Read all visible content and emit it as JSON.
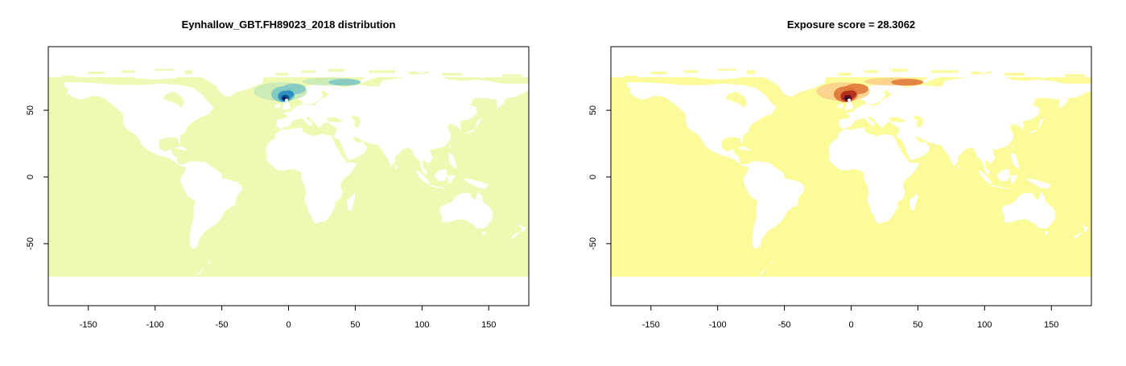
{
  "panels": [
    {
      "title": "Eynhallow_GBT.FH89023_2018 distribution",
      "ocean_color": "#eef9b4",
      "hotspot_colors": [
        "#c9e9b5",
        "#7fc9c4",
        "#2f8fbf",
        "#0b4f8a",
        "#081d58"
      ]
    },
    {
      "title": "Exposure score = 28.3062",
      "ocean_color": "#fbfb9a",
      "hotspot_colors": [
        "#f9d08a",
        "#e07a3c",
        "#b5301c",
        "#6b0f22",
        "#2a0a22"
      ]
    }
  ],
  "axes": {
    "x_ticks": [
      "-150",
      "-100",
      "-50",
      "0",
      "50",
      "100",
      "150"
    ],
    "y_ticks": [
      "-50",
      "0",
      "50"
    ],
    "x_range": [
      -180,
      180
    ],
    "y_range": [
      -95,
      97
    ]
  },
  "chart_data": [
    {
      "type": "heatmap",
      "title": "Eynhallow_GBT.FH89023_2018 distribution",
      "xlabel": "",
      "ylabel": "",
      "xlim": [
        -180,
        180
      ],
      "ylim": [
        -95,
        97
      ],
      "x_ticks": [
        -150,
        -100,
        -50,
        0,
        50,
        100,
        150
      ],
      "y_ticks": [
        -50,
        0,
        50
      ],
      "hotspot_center_lon_lat": [
        -2,
        59
      ],
      "hotspot_extent_lon_lat": [
        [
          -10,
          55
        ],
        [
          55,
          73
        ]
      ]
    },
    {
      "type": "heatmap",
      "title": "Exposure score = 28.3062",
      "xlabel": "",
      "ylabel": "",
      "xlim": [
        -180,
        180
      ],
      "ylim": [
        -95,
        97
      ],
      "x_ticks": [
        -150,
        -100,
        -50,
        0,
        50,
        100,
        150
      ],
      "y_ticks": [
        -50,
        0,
        50
      ],
      "exposure_score": 28.3062
    }
  ]
}
